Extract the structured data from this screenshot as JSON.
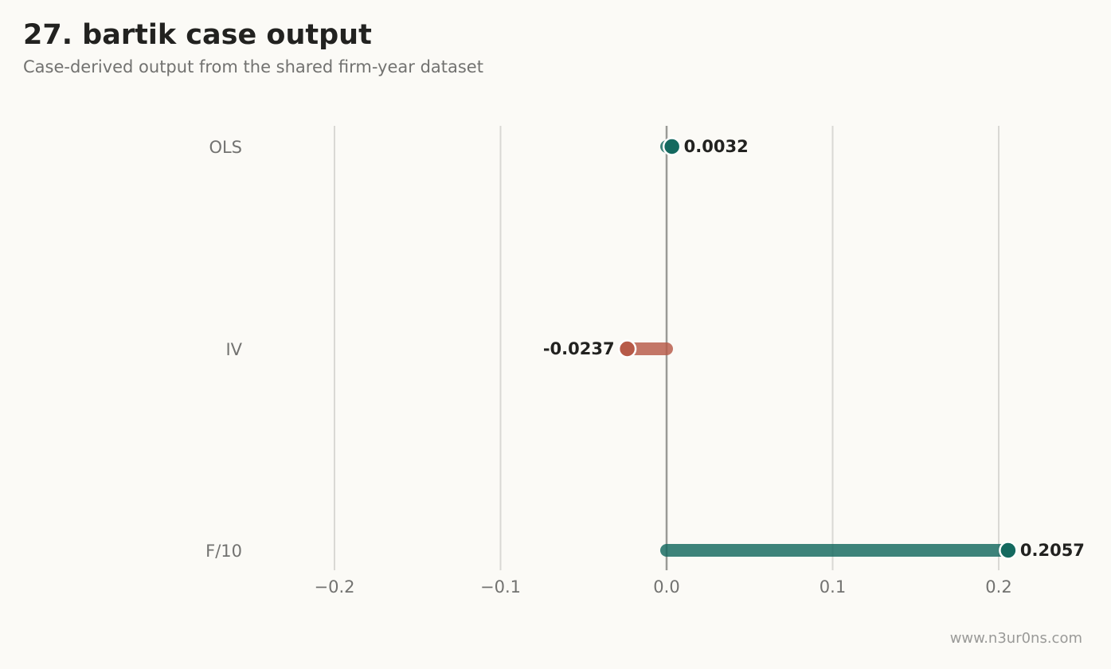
{
  "header": {
    "title": "27. bartik case output",
    "subtitle": "Case-derived output from the shared firm-year dataset"
  },
  "watermark": "www.n3ur0ns.com",
  "colors": {
    "positive": "#14695f",
    "negative": "#b75a48",
    "grid": "#d9d8d4",
    "zero_line": "#9a9a96",
    "text_dark": "#222220",
    "text_muted": "#727270",
    "background": "#fbfaf6"
  },
  "chart_data": {
    "type": "bar",
    "orientation": "horizontal",
    "style": "lollipop",
    "categories": [
      "OLS",
      "IV",
      "F/10"
    ],
    "values": [
      0.0032,
      -0.0237,
      0.2057
    ],
    "value_labels": [
      "0.0032",
      "-0.0237",
      "0.2057"
    ],
    "xlim": [
      -0.25,
      0.25
    ],
    "xticks": [
      -0.2,
      -0.1,
      0.0,
      0.1,
      0.2
    ],
    "xtick_labels": [
      "−0.2",
      "−0.1",
      "0.0",
      "0.1",
      "0.2"
    ],
    "grid": "vertical",
    "zero_line": true
  }
}
